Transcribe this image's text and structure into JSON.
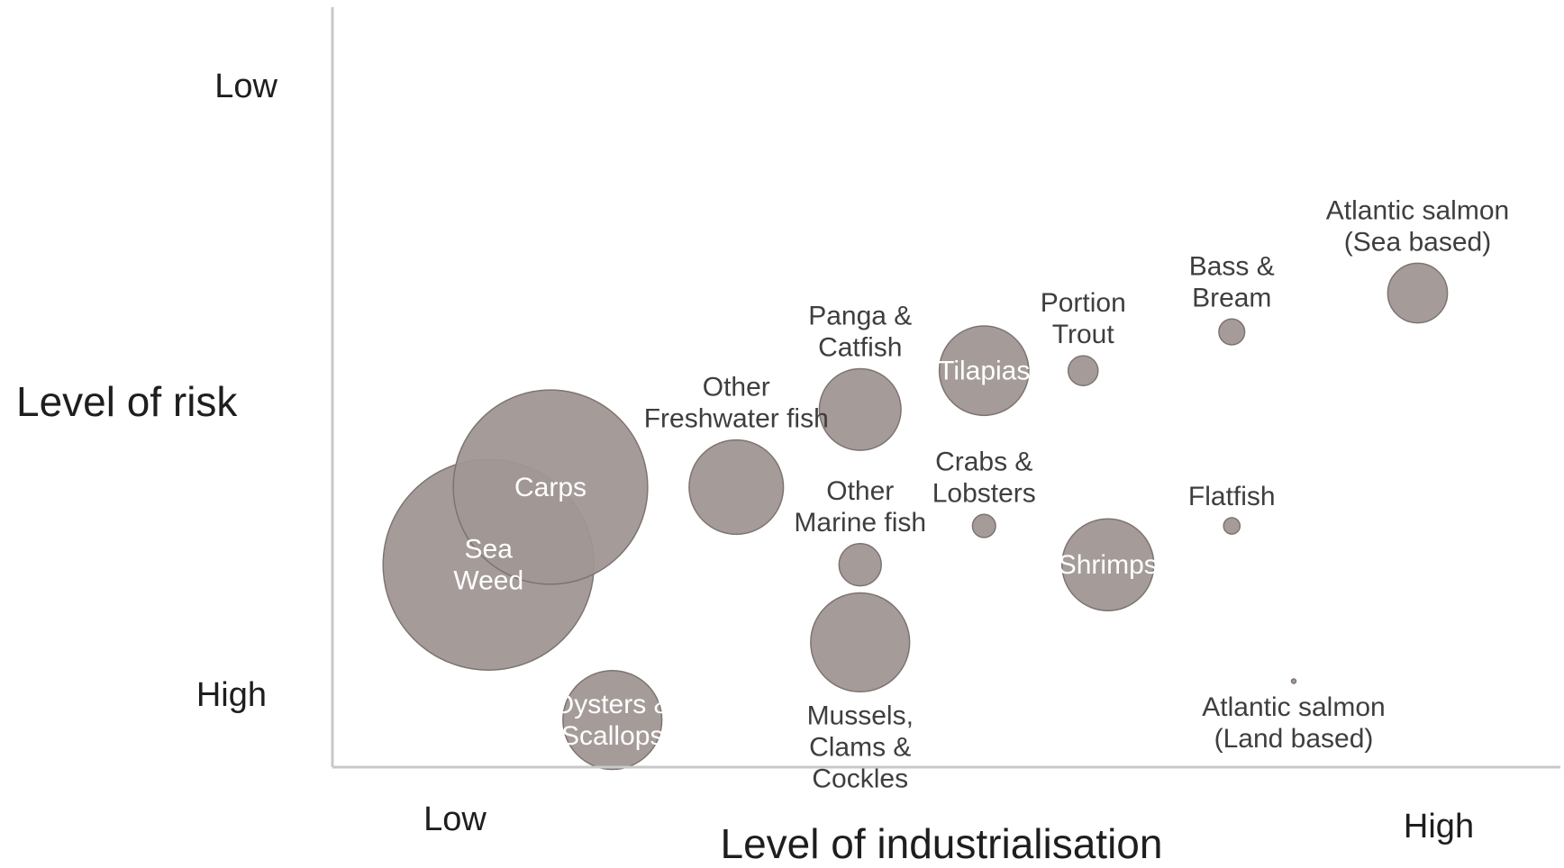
{
  "chart_data": {
    "type": "bubble",
    "title": "",
    "xlabel": "Level of industrialisation",
    "ylabel": "Level of risk",
    "x_ticks": {
      "low": "Low",
      "high": "High"
    },
    "y_ticks": {
      "low": "Low",
      "high": "High"
    },
    "xlim": [
      0,
      10
    ],
    "ylim": [
      0,
      10
    ],
    "grid": false,
    "legend": "none",
    "bubble_color": "#a09794",
    "points": [
      {
        "name": "Sea\nWeed",
        "x": 1.5,
        "y": 4.0,
        "size": 100,
        "label_pos": "inside"
      },
      {
        "name": "Carps",
        "x": 2.0,
        "y": 5.0,
        "size": 85,
        "label_pos": "inside"
      },
      {
        "name": "Oysters &\nScallops",
        "x": 2.5,
        "y": 2.0,
        "size": 22,
        "label_pos": "inside"
      },
      {
        "name": "Other\nFreshwater fish",
        "x": 3.5,
        "y": 5.0,
        "size": 20,
        "label_pos": "above"
      },
      {
        "name": "Panga &\nCatfish",
        "x": 4.5,
        "y": 6.0,
        "size": 15,
        "label_pos": "above"
      },
      {
        "name": "Other\nMarine fish",
        "x": 4.5,
        "y": 4.0,
        "size": 4,
        "label_pos": "above"
      },
      {
        "name": "Mussels,\nClams &\nCockles",
        "x": 4.5,
        "y": 3.0,
        "size": 22,
        "label_pos": "below"
      },
      {
        "name": "Tilapias",
        "x": 5.5,
        "y": 6.5,
        "size": 18,
        "label_pos": "inside"
      },
      {
        "name": "Crabs &\nLobsters",
        "x": 5.5,
        "y": 4.5,
        "size": 1.2,
        "label_pos": "above"
      },
      {
        "name": "Portion\nTrout",
        "x": 6.3,
        "y": 6.5,
        "size": 2,
        "label_pos": "above"
      },
      {
        "name": "Shrimps",
        "x": 6.5,
        "y": 4.0,
        "size": 19,
        "label_pos": "inside"
      },
      {
        "name": "Bass &\nBream",
        "x": 7.5,
        "y": 7.0,
        "size": 1.5,
        "label_pos": "above"
      },
      {
        "name": "Flatfish",
        "x": 7.5,
        "y": 4.5,
        "size": 0.6,
        "label_pos": "above"
      },
      {
        "name": "Atlantic salmon\n(Land based)",
        "x": 8.0,
        "y": 2.5,
        "size": 0.01,
        "label_pos": "below"
      },
      {
        "name": "Atlantic salmon\n(Sea based)",
        "x": 9.0,
        "y": 7.5,
        "size": 8,
        "label_pos": "above"
      }
    ]
  }
}
